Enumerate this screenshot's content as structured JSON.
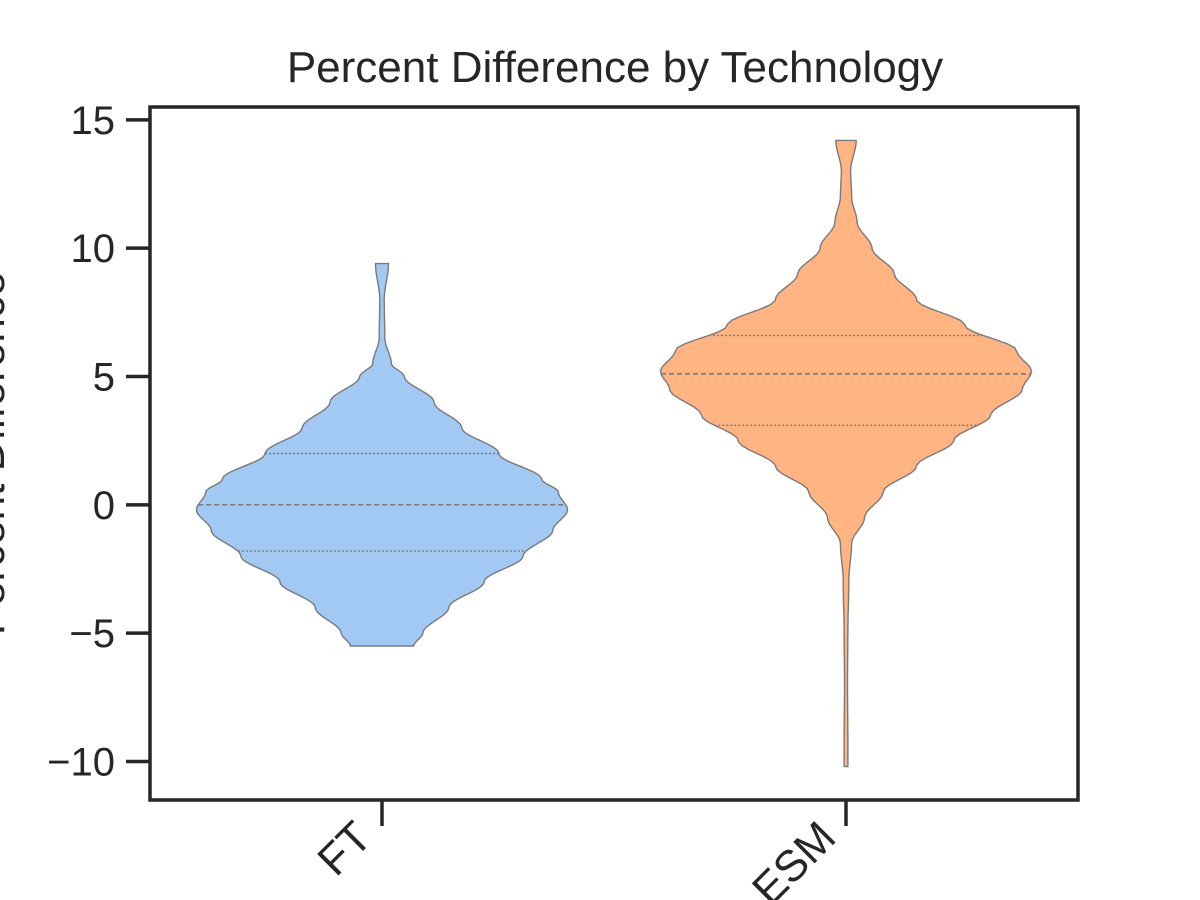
{
  "chart_data": {
    "type": "violin",
    "title": "Percent Difference by Technology",
    "xlabel": "",
    "ylabel": "Percent Difference",
    "categories": [
      "FT",
      "ESM"
    ],
    "ylim": [
      -11.5,
      15.5
    ],
    "yticks": [
      15,
      10,
      5,
      0,
      -5,
      -10
    ],
    "ytick_labels": [
      "15",
      "10",
      "5",
      "0",
      "−5",
      "−10"
    ],
    "grid": false,
    "legend": "none",
    "colors": {
      "FT": "#a1c9f4",
      "ESM": "#ffb482",
      "outline": "#7a7a7a",
      "axes": "#262626"
    },
    "violins": [
      {
        "category": "FT",
        "min": -5.5,
        "max": 9.4,
        "quartiles": {
          "q1": -1.8,
          "median": 0.0,
          "q3": 2.0
        },
        "density_profile": [
          [
            -5.5,
            0.17
          ],
          [
            -5.0,
            0.22
          ],
          [
            -4.0,
            0.36
          ],
          [
            -3.0,
            0.55
          ],
          [
            -2.0,
            0.76
          ],
          [
            -1.0,
            0.92
          ],
          [
            -0.2,
            1.0
          ],
          [
            0.5,
            0.95
          ],
          [
            1.0,
            0.86
          ],
          [
            2.0,
            0.63
          ],
          [
            3.0,
            0.43
          ],
          [
            4.0,
            0.28
          ],
          [
            5.0,
            0.12
          ],
          [
            5.5,
            0.05
          ],
          [
            6.5,
            0.015
          ],
          [
            8.0,
            0.012
          ],
          [
            9.4,
            0.035
          ]
        ]
      },
      {
        "category": "ESM",
        "min": -10.2,
        "max": 14.2,
        "quartiles": {
          "q1": 3.1,
          "median": 5.1,
          "q3": 6.6
        },
        "density_profile": [
          [
            -10.2,
            0.01
          ],
          [
            -9.0,
            0.01
          ],
          [
            -7.0,
            0.008
          ],
          [
            -5.0,
            0.01
          ],
          [
            -3.0,
            0.015
          ],
          [
            -1.5,
            0.03
          ],
          [
            -0.5,
            0.1
          ],
          [
            0.5,
            0.2
          ],
          [
            1.5,
            0.38
          ],
          [
            2.5,
            0.58
          ],
          [
            3.5,
            0.78
          ],
          [
            4.5,
            0.95
          ],
          [
            5.2,
            1.0
          ],
          [
            6.0,
            0.92
          ],
          [
            7.0,
            0.64
          ],
          [
            8.0,
            0.38
          ],
          [
            9.0,
            0.26
          ],
          [
            10.0,
            0.14
          ],
          [
            11.0,
            0.06
          ],
          [
            12.0,
            0.03
          ],
          [
            13.0,
            0.025
          ],
          [
            14.2,
            0.055
          ]
        ]
      }
    ]
  }
}
